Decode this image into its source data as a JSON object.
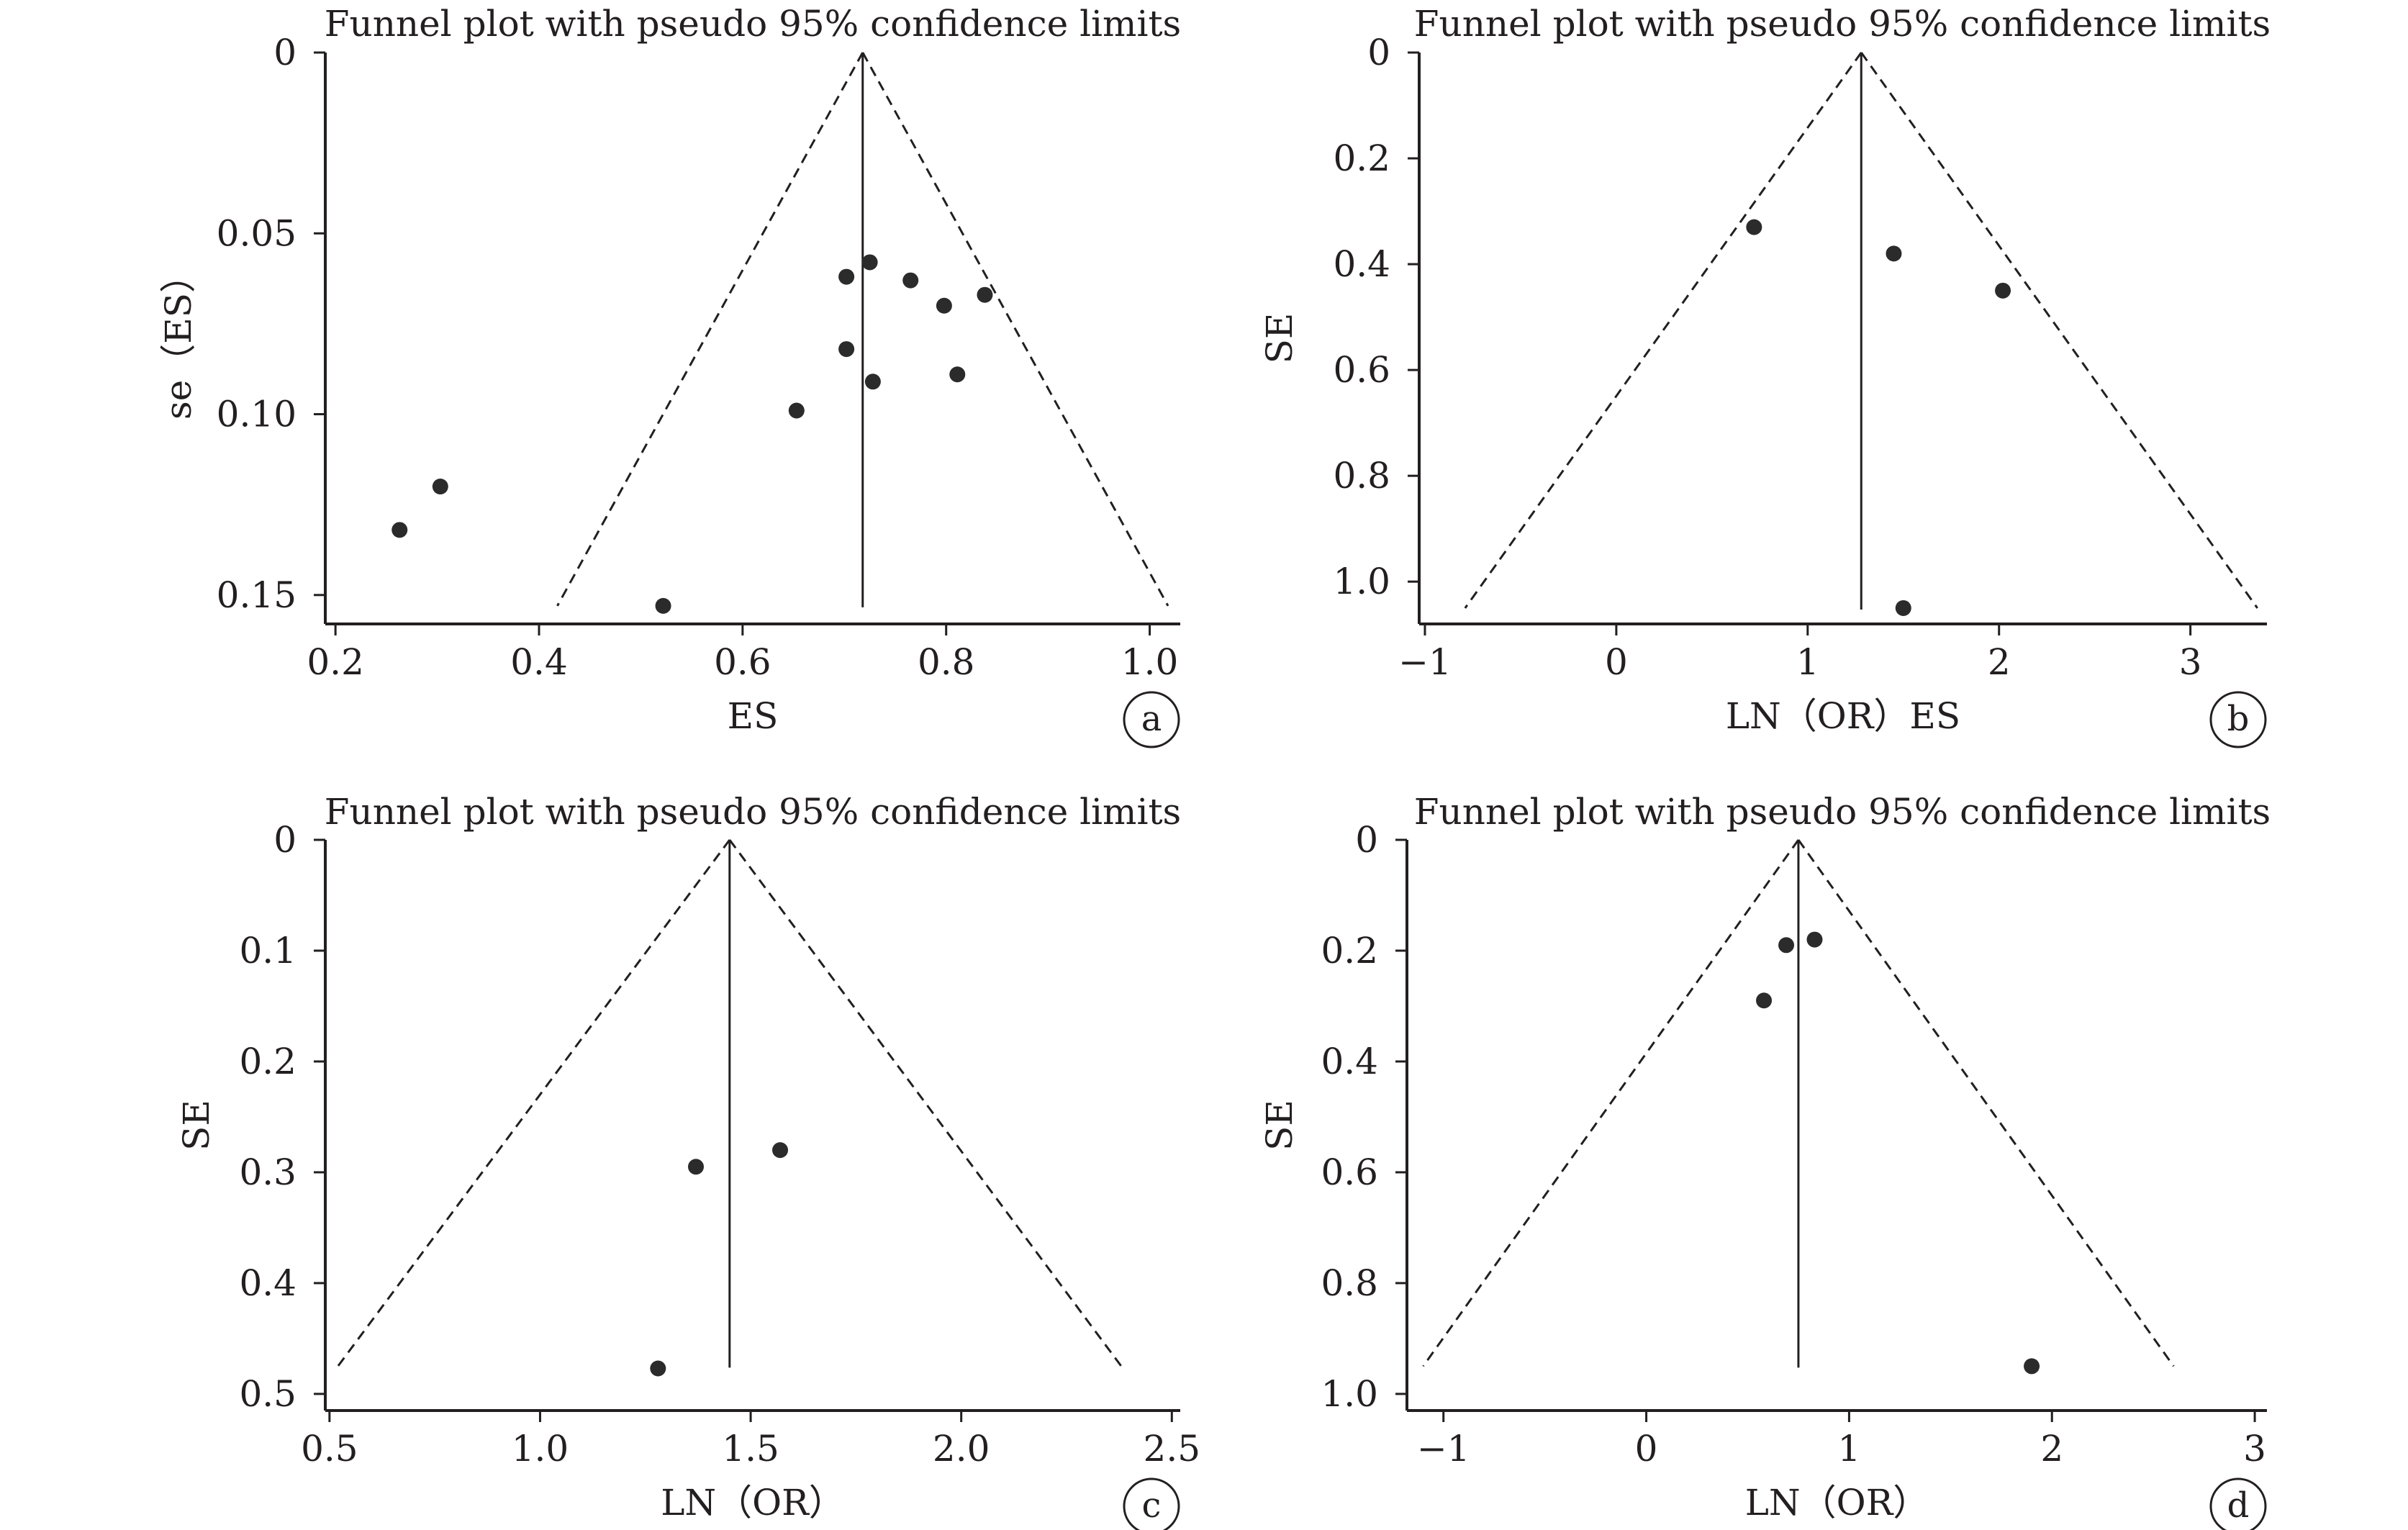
{
  "colors": {
    "ink": "#231f20",
    "point": "#2b2b2b",
    "background": "#ffffff"
  },
  "chart_data": [
    {
      "type": "scatter",
      "panel": "a",
      "title": "Funnel plot with pseudo 95% confidence limits",
      "xlabel": "ES",
      "ylabel": "se（ES）",
      "xlim": [
        0.19,
        1.03
      ],
      "ylim": [
        0,
        0.158
      ],
      "y_inverted": true,
      "xticks": [
        0.2,
        0.4,
        0.6,
        0.8,
        1.0
      ],
      "xtick_labels": [
        "0.2",
        "0.4",
        "0.6",
        "0.8",
        "1.0"
      ],
      "yticks": [
        0,
        0.05,
        0.1,
        0.15
      ],
      "ytick_labels": [
        "0",
        "0.05",
        "0.10",
        "0.15"
      ],
      "pooled_estimate": 0.718,
      "funnel_limits": {
        "apex": [
          0.718,
          0
        ],
        "lower_left": [
          0.418,
          0.153
        ],
        "lower_right": [
          1.018,
          0.153
        ]
      },
      "points": [
        {
          "x": 0.263,
          "y": 0.132
        },
        {
          "x": 0.303,
          "y": 0.12
        },
        {
          "x": 0.522,
          "y": 0.153
        },
        {
          "x": 0.653,
          "y": 0.099
        },
        {
          "x": 0.702,
          "y": 0.062
        },
        {
          "x": 0.702,
          "y": 0.082
        },
        {
          "x": 0.725,
          "y": 0.058
        },
        {
          "x": 0.728,
          "y": 0.091
        },
        {
          "x": 0.765,
          "y": 0.063
        },
        {
          "x": 0.798,
          "y": 0.07
        },
        {
          "x": 0.811,
          "y": 0.089
        },
        {
          "x": 0.838,
          "y": 0.067
        }
      ]
    },
    {
      "type": "scatter",
      "panel": "b",
      "title": "Funnel plot with pseudo 95% confidence limits",
      "xlabel": "LN（OR）ES",
      "ylabel": "SE",
      "xlim": [
        -1.03,
        3.4
      ],
      "ylim": [
        0,
        1.08
      ],
      "y_inverted": true,
      "xticks": [
        -1,
        0,
        1,
        2,
        3
      ],
      "xtick_labels": [
        "−1",
        "0",
        "1",
        "2",
        "3"
      ],
      "yticks": [
        0,
        0.2,
        0.4,
        0.6,
        0.8,
        1.0
      ],
      "ytick_labels": [
        "0",
        "0.2",
        "0.4",
        "0.6",
        "0.8",
        "1.0"
      ],
      "pooled_estimate": 1.28,
      "funnel_limits": {
        "apex": [
          1.28,
          0
        ],
        "lower_left": [
          -0.79,
          1.05
        ],
        "lower_right": [
          3.35,
          1.05
        ]
      },
      "points": [
        {
          "x": 0.72,
          "y": 0.33
        },
        {
          "x": 1.45,
          "y": 0.38
        },
        {
          "x": 2.02,
          "y": 0.45
        },
        {
          "x": 1.5,
          "y": 1.05
        }
      ]
    },
    {
      "type": "scatter",
      "panel": "c",
      "title": "Funnel plot with pseudo 95% confidence limits",
      "xlabel": "LN（OR）",
      "ylabel": "SE",
      "xlim": [
        0.49,
        2.52
      ],
      "ylim": [
        0,
        0.515
      ],
      "y_inverted": true,
      "xticks": [
        0.5,
        1.0,
        1.5,
        2.0,
        2.5
      ],
      "xtick_labels": [
        "0.5",
        "1.0",
        "1.5",
        "2.0",
        "2.5"
      ],
      "yticks": [
        0,
        0.1,
        0.2,
        0.3,
        0.4,
        0.5
      ],
      "ytick_labels": [
        "0",
        "0.1",
        "0.2",
        "0.3",
        "0.4",
        "0.5"
      ],
      "pooled_estimate": 1.45,
      "funnel_limits": {
        "apex": [
          1.45,
          0
        ],
        "lower_left": [
          0.52,
          0.475
        ],
        "lower_right": [
          2.38,
          0.475
        ]
      },
      "points": [
        {
          "x": 1.37,
          "y": 0.295
        },
        {
          "x": 1.57,
          "y": 0.28
        },
        {
          "x": 1.28,
          "y": 0.477
        }
      ]
    },
    {
      "type": "scatter",
      "panel": "d",
      "title": "Funnel plot with pseudo 95% confidence limits",
      "xlabel": "LN（OR）",
      "ylabel": "SE",
      "xlim": [
        -1.18,
        3.06
      ],
      "ylim": [
        0,
        1.03
      ],
      "y_inverted": true,
      "xticks": [
        -1,
        0,
        1,
        2,
        3
      ],
      "xtick_labels": [
        "−1",
        "0",
        "1",
        "2",
        "3"
      ],
      "yticks": [
        0,
        0.2,
        0.4,
        0.6,
        0.8,
        1.0
      ],
      "ytick_labels": [
        "0",
        "0.2",
        "0.4",
        "0.6",
        "0.8",
        "1.0"
      ],
      "pooled_estimate": 0.75,
      "funnel_limits": {
        "apex": [
          0.75,
          0
        ],
        "lower_left": [
          -1.1,
          0.95
        ],
        "lower_right": [
          2.6,
          0.95
        ]
      },
      "points": [
        {
          "x": 0.69,
          "y": 0.19
        },
        {
          "x": 0.83,
          "y": 0.18
        },
        {
          "x": 0.58,
          "y": 0.29
        },
        {
          "x": 1.9,
          "y": 0.95
        }
      ]
    }
  ]
}
